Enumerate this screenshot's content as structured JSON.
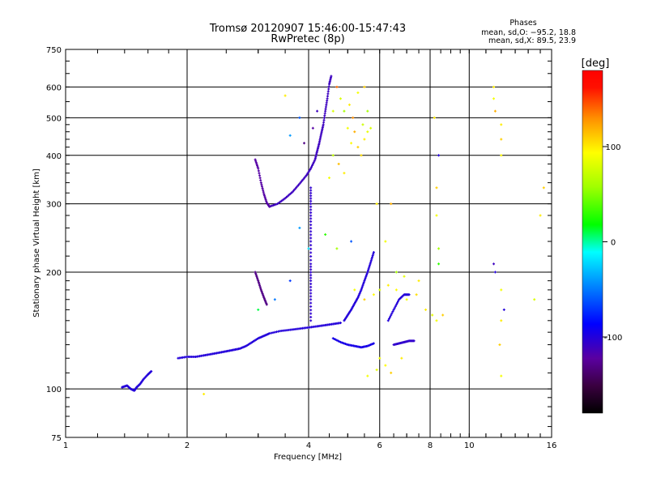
{
  "chart_data": {
    "type": "scatter",
    "title": "Tromsø 20120907 15:46:00-15:47:43",
    "subtitle": "RwPretec (8p)",
    "xlabel": "Frequency [MHz]",
    "ylabel": "Stationary phase Virtual Height [km]",
    "x_scale": "log",
    "y_scale": "log",
    "xlim": [
      1,
      16
    ],
    "ylim": [
      75,
      750
    ],
    "x_ticks": [
      1,
      2,
      4,
      6,
      8,
      10,
      16
    ],
    "x_tick_labels": [
      "1",
      "2",
      "4",
      "6",
      "8",
      "10",
      "16"
    ],
    "y_ticks": [
      75,
      100,
      200,
      300,
      400,
      500,
      600,
      750
    ],
    "y_tick_labels": [
      "75",
      "100",
      "200",
      "300",
      "400",
      "500",
      "600",
      "750"
    ],
    "grid": true,
    "phases_box": {
      "title": "Phases",
      "line1": "mean, sd,O: −95.2, 18.8",
      "line2": "mean, sd,X:  89.5, 23.9"
    },
    "colorbar": {
      "label": "[deg]",
      "range": [
        -180,
        180
      ],
      "ticks": [
        100,
        0,
        -100
      ],
      "tick_labels": [
        "100",
        "0",
        "-100"
      ],
      "colormap": "rainbow"
    },
    "traces": [
      {
        "phase": -100,
        "points": [
          [
            1.38,
            101
          ],
          [
            1.42,
            102
          ],
          [
            1.45,
            100
          ],
          [
            1.48,
            99
          ],
          [
            1.5,
            101
          ],
          [
            1.53,
            103
          ],
          [
            1.56,
            106
          ],
          [
            1.6,
            109
          ],
          [
            1.63,
            111
          ]
        ]
      },
      {
        "phase": -100,
        "points": [
          [
            1.9,
            120
          ],
          [
            2.0,
            121
          ],
          [
            2.1,
            121
          ],
          [
            2.2,
            122
          ],
          [
            2.3,
            123
          ],
          [
            2.4,
            124
          ],
          [
            2.5,
            125
          ],
          [
            2.6,
            126
          ],
          [
            2.7,
            127
          ],
          [
            2.8,
            129
          ],
          [
            2.9,
            132
          ],
          [
            3.0,
            135
          ],
          [
            3.1,
            137
          ],
          [
            3.2,
            139
          ],
          [
            3.4,
            141
          ],
          [
            3.6,
            142
          ],
          [
            3.8,
            143
          ],
          [
            4.0,
            144
          ],
          [
            4.2,
            145
          ],
          [
            4.4,
            146
          ],
          [
            4.6,
            147
          ],
          [
            4.8,
            148
          ]
        ]
      },
      {
        "phase": -110,
        "points": [
          [
            3.2,
            295
          ],
          [
            3.35,
            300
          ],
          [
            3.5,
            310
          ],
          [
            3.65,
            322
          ],
          [
            3.8,
            338
          ],
          [
            3.95,
            355
          ],
          [
            4.05,
            370
          ],
          [
            4.15,
            390
          ],
          [
            4.2,
            410
          ],
          [
            4.25,
            430
          ],
          [
            4.3,
            455
          ],
          [
            4.35,
            480
          ],
          [
            4.4,
            520
          ],
          [
            4.45,
            560
          ],
          [
            4.5,
            610
          ],
          [
            4.55,
            640
          ]
        ]
      },
      {
        "phase": -120,
        "points": [
          [
            2.95,
            390
          ],
          [
            3.0,
            370
          ],
          [
            3.05,
            340
          ],
          [
            3.1,
            318
          ],
          [
            3.15,
            302
          ],
          [
            3.2,
            295
          ]
        ]
      },
      {
        "phase": -100,
        "points": [
          [
            4.9,
            150
          ],
          [
            5.0,
            155
          ],
          [
            5.1,
            160
          ],
          [
            5.2,
            166
          ],
          [
            5.3,
            172
          ],
          [
            5.4,
            180
          ],
          [
            5.5,
            190
          ],
          [
            5.6,
            200
          ],
          [
            5.7,
            212
          ],
          [
            5.8,
            225
          ]
        ]
      },
      {
        "phase": -95,
        "points": [
          [
            4.6,
            135
          ],
          [
            4.8,
            132
          ],
          [
            5.0,
            130
          ],
          [
            5.2,
            129
          ],
          [
            5.4,
            128
          ],
          [
            5.6,
            129
          ],
          [
            5.8,
            131
          ]
        ]
      },
      {
        "phase": -130,
        "points": [
          [
            2.95,
            200
          ],
          [
            3.0,
            190
          ],
          [
            3.05,
            180
          ],
          [
            3.1,
            172
          ],
          [
            3.15,
            165
          ]
        ]
      },
      {
        "phase": -105,
        "points": [
          [
            4.05,
            150
          ],
          [
            4.05,
            170
          ],
          [
            4.05,
            190
          ],
          [
            4.05,
            210
          ],
          [
            4.05,
            240
          ],
          [
            4.05,
            270
          ],
          [
            4.05,
            300
          ],
          [
            4.05,
            330
          ]
        ]
      },
      {
        "phase": -105,
        "points": [
          [
            6.5,
            130
          ],
          [
            6.7,
            131
          ],
          [
            6.9,
            132
          ],
          [
            7.1,
            133
          ],
          [
            7.3,
            133
          ]
        ]
      },
      {
        "phase": -100,
        "points": [
          [
            6.3,
            150
          ],
          [
            6.5,
            160
          ],
          [
            6.7,
            170
          ],
          [
            6.9,
            175
          ],
          [
            7.1,
            175
          ]
        ]
      }
    ],
    "scatter_points": [
      {
        "x": 5.1,
        "y": 430,
        "phase": 95
      },
      {
        "x": 5.3,
        "y": 420,
        "phase": 110
      },
      {
        "x": 5.5,
        "y": 440,
        "phase": 100
      },
      {
        "x": 5.6,
        "y": 460,
        "phase": 85
      },
      {
        "x": 5.2,
        "y": 460,
        "phase": 120
      },
      {
        "x": 5.4,
        "y": 400,
        "phase": 105
      },
      {
        "x": 5.0,
        "y": 470,
        "phase": 90
      },
      {
        "x": 5.45,
        "y": 480,
        "phase": 75
      },
      {
        "x": 5.15,
        "y": 500,
        "phase": 130
      },
      {
        "x": 4.9,
        "y": 520,
        "phase": 60
      },
      {
        "x": 5.05,
        "y": 540,
        "phase": 100
      },
      {
        "x": 5.3,
        "y": 580,
        "phase": 90
      },
      {
        "x": 5.5,
        "y": 600,
        "phase": 110
      },
      {
        "x": 4.7,
        "y": 600,
        "phase": 140
      },
      {
        "x": 4.8,
        "y": 560,
        "phase": 80
      },
      {
        "x": 4.6,
        "y": 400,
        "phase": 70
      },
      {
        "x": 4.75,
        "y": 380,
        "phase": 115
      },
      {
        "x": 4.5,
        "y": 350,
        "phase": 90
      },
      {
        "x": 4.9,
        "y": 360,
        "phase": 100
      },
      {
        "x": 5.7,
        "y": 470,
        "phase": 80
      },
      {
        "x": 5.2,
        "y": 180,
        "phase": 90
      },
      {
        "x": 5.5,
        "y": 170,
        "phase": 110
      },
      {
        "x": 5.8,
        "y": 175,
        "phase": 95
      },
      {
        "x": 6.0,
        "y": 180,
        "phase": 80
      },
      {
        "x": 6.3,
        "y": 185,
        "phase": 100
      },
      {
        "x": 6.6,
        "y": 180,
        "phase": 95
      },
      {
        "x": 7.0,
        "y": 170,
        "phase": 90
      },
      {
        "x": 7.4,
        "y": 175,
        "phase": 105
      },
      {
        "x": 7.8,
        "y": 160,
        "phase": 100
      },
      {
        "x": 8.1,
        "y": 155,
        "phase": 85
      },
      {
        "x": 8.3,
        "y": 150,
        "phase": 90
      },
      {
        "x": 8.6,
        "y": 155,
        "phase": 110
      },
      {
        "x": 6.0,
        "y": 120,
        "phase": 90
      },
      {
        "x": 6.2,
        "y": 115,
        "phase": 95
      },
      {
        "x": 6.8,
        "y": 120,
        "phase": 100
      },
      {
        "x": 6.4,
        "y": 110,
        "phase": 110
      },
      {
        "x": 5.6,
        "y": 108,
        "phase": 90
      },
      {
        "x": 5.9,
        "y": 112,
        "phase": 85
      },
      {
        "x": 6.6,
        "y": 200,
        "phase": 60
      },
      {
        "x": 6.9,
        "y": 195,
        "phase": 85
      },
      {
        "x": 7.5,
        "y": 190,
        "phase": 100
      },
      {
        "x": 4.0,
        "y": 230,
        "phase": -20
      },
      {
        "x": 4.4,
        "y": 250,
        "phase": 30
      },
      {
        "x": 4.7,
        "y": 230,
        "phase": 60
      },
      {
        "x": 5.1,
        "y": 240,
        "phase": -60
      },
      {
        "x": 3.8,
        "y": 260,
        "phase": -40
      },
      {
        "x": 3.6,
        "y": 190,
        "phase": -70
      },
      {
        "x": 3.3,
        "y": 170,
        "phase": -50
      },
      {
        "x": 3.0,
        "y": 160,
        "phase": 10
      },
      {
        "x": 2.2,
        "y": 97,
        "phase": 100
      },
      {
        "x": 3.5,
        "y": 570,
        "phase": 100
      },
      {
        "x": 3.8,
        "y": 500,
        "phase": -60
      },
      {
        "x": 3.6,
        "y": 450,
        "phase": -40
      },
      {
        "x": 3.9,
        "y": 430,
        "phase": -130
      },
      {
        "x": 4.1,
        "y": 470,
        "phase": -120
      },
      {
        "x": 4.2,
        "y": 520,
        "phase": -110
      },
      {
        "x": 4.6,
        "y": 520,
        "phase": 80
      },
      {
        "x": 5.6,
        "y": 520,
        "phase": 60
      },
      {
        "x": 5.9,
        "y": 300,
        "phase": 100
      },
      {
        "x": 6.4,
        "y": 300,
        "phase": 120
      },
      {
        "x": 6.2,
        "y": 240,
        "phase": 90
      },
      {
        "x": 8.2,
        "y": 500,
        "phase": 100
      },
      {
        "x": 8.3,
        "y": 330,
        "phase": 110
      },
      {
        "x": 8.3,
        "y": 280,
        "phase": 90
      },
      {
        "x": 8.4,
        "y": 230,
        "phase": 60
      },
      {
        "x": 8.4,
        "y": 210,
        "phase": 30
      },
      {
        "x": 8.4,
        "y": 400,
        "phase": -100
      },
      {
        "x": 11.5,
        "y": 600,
        "phase": 100
      },
      {
        "x": 11.5,
        "y": 560,
        "phase": 90
      },
      {
        "x": 11.6,
        "y": 520,
        "phase": 120
      },
      {
        "x": 12.0,
        "y": 480,
        "phase": 100
      },
      {
        "x": 12.0,
        "y": 440,
        "phase": 110
      },
      {
        "x": 12.0,
        "y": 400,
        "phase": 95
      },
      {
        "x": 11.6,
        "y": 200,
        "phase": -100
      },
      {
        "x": 11.5,
        "y": 210,
        "phase": -110
      },
      {
        "x": 12.0,
        "y": 180,
        "phase": 90
      },
      {
        "x": 12.2,
        "y": 160,
        "phase": -100
      },
      {
        "x": 12.0,
        "y": 150,
        "phase": 100
      },
      {
        "x": 11.9,
        "y": 130,
        "phase": 110
      },
      {
        "x": 12.0,
        "y": 108,
        "phase": 90
      },
      {
        "x": 14.5,
        "y": 170,
        "phase": 80
      },
      {
        "x": 15.0,
        "y": 280,
        "phase": 100
      },
      {
        "x": 15.3,
        "y": 330,
        "phase": 110
      }
    ]
  }
}
